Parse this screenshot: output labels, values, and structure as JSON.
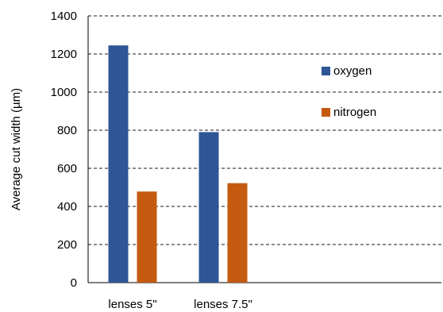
{
  "chart_data": {
    "type": "bar",
    "title": "",
    "xlabel": "",
    "ylabel": "Average cut width (µm)",
    "categories": [
      "lenses 5\"",
      "lenses 7.5\""
    ],
    "series": [
      {
        "name": "oxygen",
        "values": [
          1245,
          790
        ],
        "color": "#2F5597"
      },
      {
        "name": "nitrogen",
        "values": [
          478,
          522
        ],
        "color": "#C55A11"
      }
    ],
    "ylim": [
      0,
      1400
    ],
    "yticks": [
      0,
      200,
      400,
      600,
      800,
      1000,
      1200,
      1400
    ],
    "grid": true,
    "grid_style": "dashed",
    "legend_position": "right"
  }
}
